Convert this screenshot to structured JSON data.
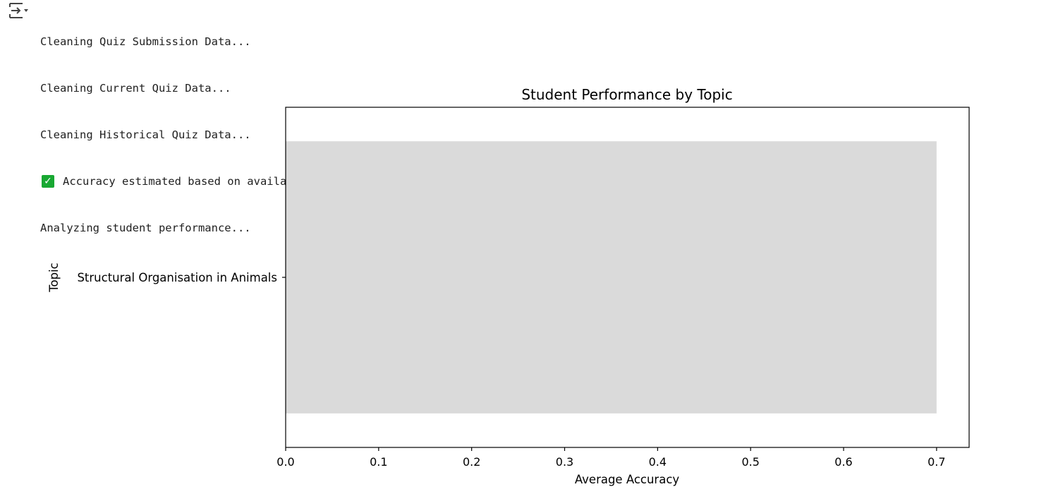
{
  "output": {
    "toggle_icon": "output-collapse-icon",
    "lines": [
      {
        "icon": "",
        "text": "Cleaning Quiz Submission Data..."
      },
      {
        "icon": "",
        "text": "Cleaning Current Quiz Data..."
      },
      {
        "icon": "",
        "text": "Cleaning Historical Quiz Data..."
      },
      {
        "icon": "check-mark-icon",
        "text": "Accuracy estimated based on available data."
      },
      {
        "icon": "",
        "text": "Analyzing student performance..."
      }
    ]
  },
  "chart_data": {
    "type": "bar",
    "orientation": "horizontal",
    "title": "Student Performance by Topic",
    "xlabel": "Average Accuracy",
    "ylabel": "Topic",
    "categories": [
      "Structural Organisation in Animals"
    ],
    "values": [
      0.7
    ],
    "xlim": [
      0,
      0.735
    ],
    "xticks": [
      0.0,
      0.1,
      0.2,
      0.3,
      0.4,
      0.5,
      0.6,
      0.7
    ],
    "xtick_labels": [
      "0.0",
      "0.1",
      "0.2",
      "0.3",
      "0.4",
      "0.5",
      "0.6",
      "0.7"
    ],
    "bar_color": "#dadada",
    "grid": false,
    "legend": "none"
  }
}
